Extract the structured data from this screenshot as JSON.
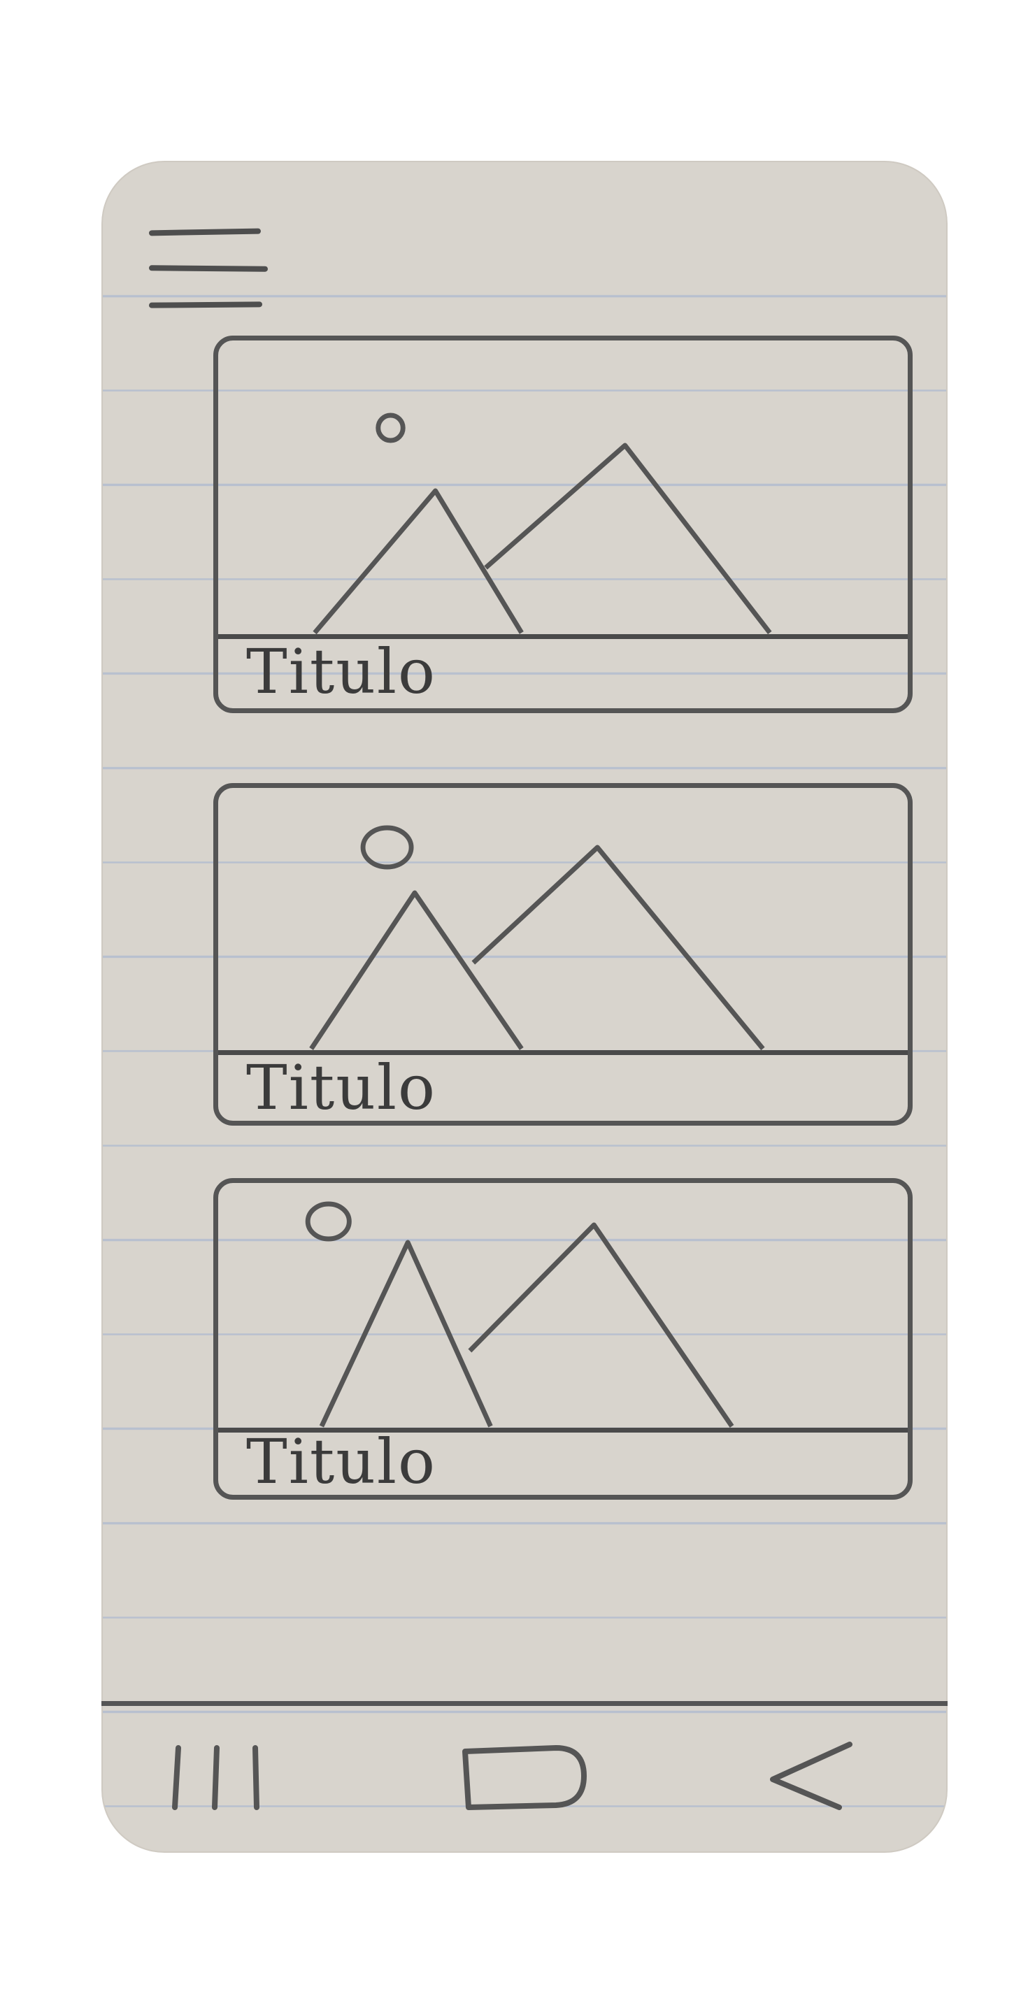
{
  "header": {
    "menu_icon": "hamburger-menu-icon"
  },
  "cards": [
    {
      "title": "Titulo",
      "image_icon": "image-placeholder-icon"
    },
    {
      "title": "Titulo",
      "image_icon": "image-placeholder-icon"
    },
    {
      "title": "Titulo",
      "image_icon": "image-placeholder-icon"
    }
  ],
  "navbar": {
    "icons": [
      "recents-icon",
      "home-icon",
      "back-icon"
    ]
  },
  "colors": {
    "paper": "#d8d4cd",
    "pencil": "#555555",
    "ruled_line": "#b8c0cf"
  }
}
